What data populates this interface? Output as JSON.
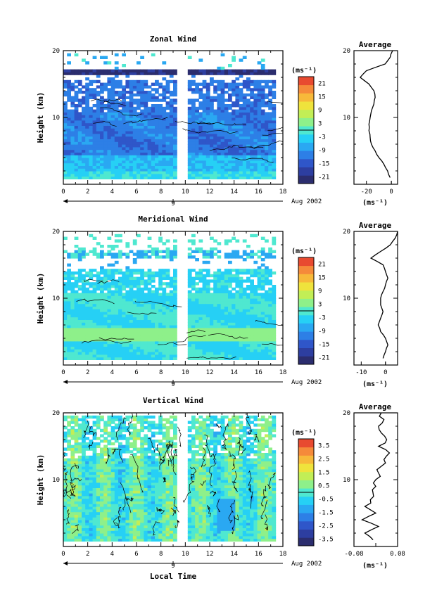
{
  "figure": {
    "xlabel": "Local Time",
    "date_label": "Aug 2002",
    "date_day": "9",
    "cb_unit": "(ms⁻¹)",
    "avg_unit": "(ms⁻¹)"
  },
  "colors": {
    "scale": [
      "#2b2d6e",
      "#2d3ea0",
      "#2f56c9",
      "#2d7fe6",
      "#2aa8f2",
      "#26d0f5",
      "#4fe8d0",
      "#8ef08a",
      "#c2ee56",
      "#efe33c",
      "#f7b93a",
      "#f58a3a",
      "#e84a30"
    ],
    "contour": "#000000"
  },
  "chart_data": [
    {
      "type": "heatmap",
      "title": "Zonal Wind",
      "ylabel": "Height (km)",
      "xlim": [
        0,
        18
      ],
      "ylim": [
        0,
        20
      ],
      "x_ticks": [
        "0",
        "2",
        "4",
        "6",
        "8",
        "10",
        "12",
        "14",
        "16",
        "18"
      ],
      "y_ticks": [
        "10",
        "20"
      ],
      "colorbar_ticks": [
        "21",
        "15",
        "9",
        "3",
        "-3",
        "-9",
        "-15",
        "-21"
      ],
      "colorbar_range": [
        -24,
        24
      ],
      "data_gap_hours": [
        9.6,
        9.95
      ],
      "profile": {
        "title": "Average",
        "xlim": [
          -30,
          5
        ],
        "x_ticks": [
          "-20",
          "0"
        ],
        "y_ticks": [
          "10",
          "20"
        ],
        "heights": [
          1,
          2,
          3,
          4,
          5,
          6,
          7,
          8,
          9,
          10,
          11,
          12,
          13,
          14,
          15,
          16,
          17,
          18,
          19,
          20
        ],
        "values": [
          -1,
          -3,
          -6,
          -10,
          -13,
          -16,
          -17,
          -18,
          -18,
          -17,
          -16,
          -14,
          -13,
          -14,
          -18,
          -25,
          -20,
          -5,
          -1,
          1
        ]
      }
    },
    {
      "type": "heatmap",
      "title": "Meridional Wind",
      "ylabel": "Height (km)",
      "xlim": [
        0,
        18
      ],
      "ylim": [
        0,
        20
      ],
      "x_ticks": [
        "0",
        "2",
        "4",
        "6",
        "8",
        "10",
        "12",
        "14",
        "16",
        "18"
      ],
      "y_ticks": [
        "10",
        "20"
      ],
      "colorbar_ticks": [
        "21",
        "15",
        "9",
        "3",
        "-3",
        "-9",
        "-15",
        "-21"
      ],
      "colorbar_range": [
        -24,
        24
      ],
      "data_gap_hours": [
        9.6,
        9.95
      ],
      "profile": {
        "title": "Average",
        "xlim": [
          -13,
          5
        ],
        "x_ticks": [
          "-10",
          "0"
        ],
        "y_ticks": [
          "10",
          "20"
        ],
        "heights": [
          1,
          2,
          3,
          4,
          5,
          6,
          7,
          8,
          9,
          10,
          11,
          12,
          13,
          14,
          15,
          16,
          17,
          18,
          19,
          20
        ],
        "values": [
          -1,
          0,
          1,
          0,
          -2,
          -3,
          -2,
          -1,
          -2,
          -2,
          -1,
          0,
          1,
          0,
          -1,
          -6,
          -2,
          2,
          4,
          5
        ]
      }
    },
    {
      "type": "heatmap",
      "title": "Vertical Wind",
      "ylabel": "Height (km)",
      "xlim": [
        0,
        18
      ],
      "ylim": [
        0,
        20
      ],
      "x_ticks": [
        "0",
        "2",
        "4",
        "6",
        "8",
        "10",
        "12",
        "14",
        "16",
        "18"
      ],
      "y_ticks": [
        "10",
        "20"
      ],
      "colorbar_ticks": [
        "3.5",
        "2.5",
        "1.5",
        "0.5",
        "-0.5",
        "-1.5",
        "-2.5",
        "-3.5"
      ],
      "colorbar_range": [
        -4,
        4
      ],
      "data_gap_hours": [
        9.6,
        9.95
      ],
      "profile": {
        "title": "Average",
        "xlim": [
          -0.08,
          0.08
        ],
        "x_ticks": [
          "-0.08",
          "0.08"
        ],
        "y_ticks": [
          "10",
          "20"
        ],
        "heights": [
          1,
          2,
          3,
          4,
          5,
          6,
          7,
          8,
          9,
          10,
          11,
          12,
          13,
          14,
          15,
          16,
          17,
          18,
          19,
          20
        ],
        "values": [
          -0.01,
          -0.04,
          0.01,
          -0.05,
          0.0,
          -0.04,
          -0.02,
          -0.01,
          0.0,
          0.0,
          0.01,
          0.02,
          0.03,
          0.05,
          0.01,
          0.04,
          0.02,
          0.01,
          0.03,
          0.02
        ]
      }
    }
  ]
}
